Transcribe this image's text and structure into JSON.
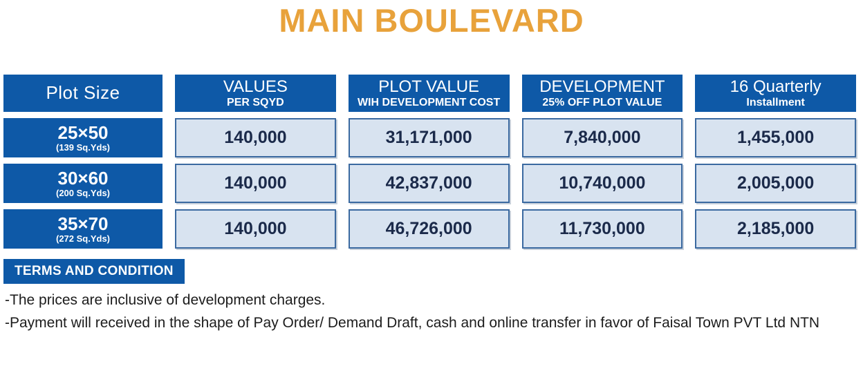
{
  "title": "MAIN BOULEVARD",
  "colors": {
    "title_orange": "#E8A23B",
    "header_blue": "#0E59A7",
    "cell_fill": "#D8E3F0",
    "cell_border": "#3A69A0",
    "value_text": "#1B2A4A"
  },
  "table": {
    "headers": [
      {
        "line1": "Plot Size",
        "line2": ""
      },
      {
        "line1": "VALUES",
        "line2": "PER SQYD"
      },
      {
        "line1": "PLOT VALUE",
        "line2": "WIH DEVELOPMENT COST"
      },
      {
        "line1": "DEVELOPMENT",
        "line2": "25% OFF PLOT VALUE"
      },
      {
        "line1": "16 Quarterly",
        "line2": "Installment"
      }
    ],
    "rows": [
      {
        "size": "25×50",
        "sqyds": "(139 Sq.Yds)",
        "values": [
          "140,000",
          "31,171,000",
          "7,840,000",
          "1,455,000"
        ]
      },
      {
        "size": "30×60",
        "sqyds": "(200 Sq.Yds)",
        "values": [
          "140,000",
          "42,837,000",
          "10,740,000",
          "2,005,000"
        ]
      },
      {
        "size": "35×70",
        "sqyds": "(272 Sq.Yds)",
        "values": [
          "140,000",
          "46,726,000",
          "11,730,000",
          "2,185,000"
        ]
      }
    ]
  },
  "terms": {
    "badge": "TERMS AND CONDITION",
    "notes": [
      "-The prices are inclusive of development charges.",
      "-Payment will received in the shape of Pay Order/ Demand Draft, cash and online transfer in favor of Faisal Town PVT Ltd NTN"
    ]
  }
}
